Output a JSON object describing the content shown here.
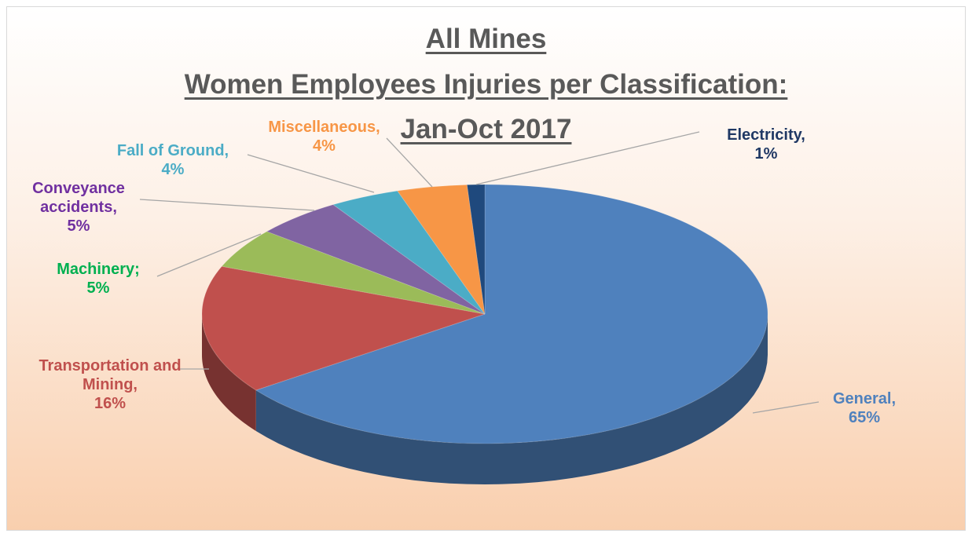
{
  "chart_data": {
    "type": "pie",
    "title": [
      "All Mines",
      "Women Employees Injuries per Classification:",
      "Jan-Oct 2017"
    ],
    "categories": [
      "General,",
      "Transportation and Mining,",
      "Machinery;",
      "Conveyance accidents,",
      "Fall of Ground,",
      "Miscellaneous,",
      "Electricity,"
    ],
    "values": [
      65,
      16,
      5,
      5,
      4,
      4,
      1
    ],
    "value_labels": [
      "65%",
      "16%",
      "5%",
      "5%",
      "4%",
      "4%",
      "1%"
    ],
    "colors": [
      "#4f81bd",
      "#c0504d",
      "#9bbb59",
      "#8064a2",
      "#4bacc6",
      "#f79646",
      "#1f497d"
    ],
    "label_colors": [
      "#4f81bd",
      "#c0504d",
      "#00b050",
      "#7030a0",
      "#4bacc6",
      "#f79646",
      "#1f3864"
    ]
  }
}
